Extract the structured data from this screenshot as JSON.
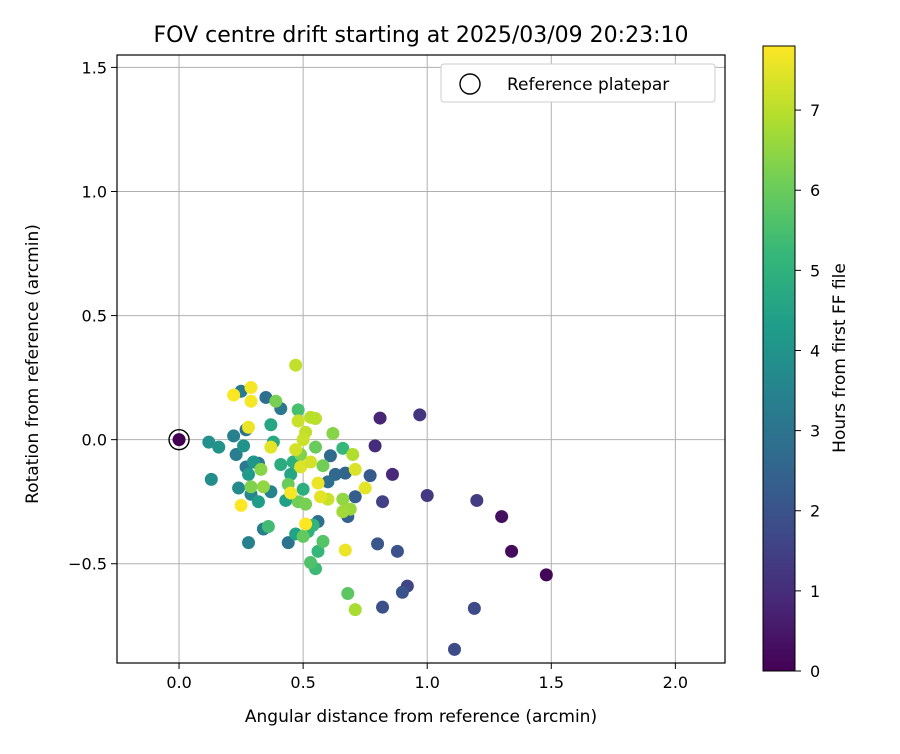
{
  "chart_data": {
    "type": "scatter",
    "title": "FOV centre drift starting at 2025/03/09 20:23:10",
    "xlabel": "Angular distance from reference (arcmin)",
    "ylabel": "Rotation from reference (arcmin)",
    "xlim": [
      -0.25,
      2.2
    ],
    "ylim": [
      -0.9,
      1.55
    ],
    "xticks": [
      "0.0",
      "0.5",
      "1.0",
      "1.5",
      "2.0"
    ],
    "xtick_values": [
      0,
      0.5,
      1.0,
      1.5,
      2.0
    ],
    "yticks": [
      "−0.5",
      "0.0",
      "0.5",
      "1.0",
      "1.5"
    ],
    "ytick_values": [
      -0.5,
      0,
      0.5,
      1.0,
      1.5
    ],
    "grid": true,
    "legend": {
      "label": "Reference platepar",
      "placement": "top-right"
    },
    "reference_point": {
      "x": 0,
      "y": 0,
      "hours": 0
    },
    "colorbar": {
      "label": "Hours from first FF file",
      "colormap": "viridis",
      "range": [
        0,
        7.8
      ],
      "ticks": [
        "0",
        "1",
        "2",
        "3",
        "4",
        "5",
        "6",
        "7"
      ],
      "tick_values": [
        0,
        1,
        2,
        3,
        4,
        5,
        6,
        7
      ]
    },
    "points": [
      {
        "x": 1.48,
        "y": -0.545,
        "hours": 0.1
      },
      {
        "x": 1.34,
        "y": -0.45,
        "hours": 0.2
      },
      {
        "x": 1.3,
        "y": -0.31,
        "hours": 0.3
      },
      {
        "x": 0.81,
        "y": 0.087,
        "hours": 0.8
      },
      {
        "x": 0.86,
        "y": -0.14,
        "hours": 0.9
      },
      {
        "x": 0.79,
        "y": -0.025,
        "hours": 1.0
      },
      {
        "x": 0.97,
        "y": 0.1,
        "hours": 1.2
      },
      {
        "x": 1.0,
        "y": -0.225,
        "hours": 1.3
      },
      {
        "x": 1.2,
        "y": -0.245,
        "hours": 1.4
      },
      {
        "x": 0.82,
        "y": -0.25,
        "hours": 1.5
      },
      {
        "x": 0.92,
        "y": -0.59,
        "hours": 1.6
      },
      {
        "x": 1.19,
        "y": -0.68,
        "hours": 1.7
      },
      {
        "x": 1.11,
        "y": -0.845,
        "hours": 1.8
      },
      {
        "x": 0.82,
        "y": -0.675,
        "hours": 1.9
      },
      {
        "x": 0.9,
        "y": -0.615,
        "hours": 2.0
      },
      {
        "x": 0.88,
        "y": -0.45,
        "hours": 2.0
      },
      {
        "x": 0.8,
        "y": -0.42,
        "hours": 2.1
      },
      {
        "x": 0.77,
        "y": -0.145,
        "hours": 2.2
      },
      {
        "x": 0.71,
        "y": -0.23,
        "hours": 2.3
      },
      {
        "x": 0.68,
        "y": -0.31,
        "hours": 2.4
      },
      {
        "x": 0.67,
        "y": -0.135,
        "hours": 2.5
      },
      {
        "x": 0.63,
        "y": -0.14,
        "hours": 2.6
      },
      {
        "x": 0.61,
        "y": -0.065,
        "hours": 2.7
      },
      {
        "x": 0.6,
        "y": -0.17,
        "hours": 2.8
      },
      {
        "x": 0.56,
        "y": -0.33,
        "hours": 2.9
      },
      {
        "x": 0.44,
        "y": -0.415,
        "hours": 3.0
      },
      {
        "x": 0.35,
        "y": 0.17,
        "hours": 2.8
      },
      {
        "x": 0.41,
        "y": 0.125,
        "hours": 3.1
      },
      {
        "x": 0.25,
        "y": 0.195,
        "hours": 3.2
      },
      {
        "x": 0.27,
        "y": 0.04,
        "hours": 3.0
      },
      {
        "x": 0.22,
        "y": 0.015,
        "hours": 3.4
      },
      {
        "x": 0.23,
        "y": -0.06,
        "hours": 3.3
      },
      {
        "x": 0.32,
        "y": -0.095,
        "hours": 3.1
      },
      {
        "x": 0.27,
        "y": -0.11,
        "hours": 3.2
      },
      {
        "x": 0.34,
        "y": -0.36,
        "hours": 3.3
      },
      {
        "x": 0.28,
        "y": -0.415,
        "hours": 3.4
      },
      {
        "x": 0.37,
        "y": -0.21,
        "hours": 3.5
      },
      {
        "x": 0.29,
        "y": -0.22,
        "hours": 3.6
      },
      {
        "x": 0.24,
        "y": -0.195,
        "hours": 3.7
      },
      {
        "x": 0.13,
        "y": -0.16,
        "hours": 3.8
      },
      {
        "x": 0.12,
        "y": -0.01,
        "hours": 3.9
      },
      {
        "x": 0.16,
        "y": -0.03,
        "hours": 4.0
      },
      {
        "x": 0.26,
        "y": -0.025,
        "hours": 4.0
      },
      {
        "x": 0.3,
        "y": -0.09,
        "hours": 4.1
      },
      {
        "x": 0.28,
        "y": -0.14,
        "hours": 4.2
      },
      {
        "x": 0.32,
        "y": -0.25,
        "hours": 4.3
      },
      {
        "x": 0.43,
        "y": -0.245,
        "hours": 4.4
      },
      {
        "x": 0.47,
        "y": -0.38,
        "hours": 4.5
      },
      {
        "x": 0.45,
        "y": -0.14,
        "hours": 4.6
      },
      {
        "x": 0.37,
        "y": 0.06,
        "hours": 4.6
      },
      {
        "x": 0.38,
        "y": -0.01,
        "hours": 4.7
      },
      {
        "x": 0.41,
        "y": -0.1,
        "hours": 4.8
      },
      {
        "x": 0.46,
        "y": -0.09,
        "hours": 4.9
      },
      {
        "x": 0.5,
        "y": -0.2,
        "hours": 4.9
      },
      {
        "x": 0.52,
        "y": -0.37,
        "hours": 5.0
      },
      {
        "x": 0.54,
        "y": -0.345,
        "hours": 5.1
      },
      {
        "x": 0.56,
        "y": -0.45,
        "hours": 5.2
      },
      {
        "x": 0.55,
        "y": -0.52,
        "hours": 5.3
      },
      {
        "x": 0.66,
        "y": -0.035,
        "hours": 5.2
      },
      {
        "x": 0.36,
        "y": -0.35,
        "hours": 5.4
      },
      {
        "x": 0.48,
        "y": 0.12,
        "hours": 5.5
      },
      {
        "x": 0.53,
        "y": -0.495,
        "hours": 5.6
      },
      {
        "x": 0.58,
        "y": -0.41,
        "hours": 5.7
      },
      {
        "x": 0.68,
        "y": -0.62,
        "hours": 5.8
      },
      {
        "x": 0.5,
        "y": -0.39,
        "hours": 5.9
      },
      {
        "x": 0.44,
        "y": -0.18,
        "hours": 6.0
      },
      {
        "x": 0.48,
        "y": -0.25,
        "hours": 6.1
      },
      {
        "x": 0.51,
        "y": -0.26,
        "hours": 6.2
      },
      {
        "x": 0.55,
        "y": -0.03,
        "hours": 6.0
      },
      {
        "x": 0.58,
        "y": -0.105,
        "hours": 6.1
      },
      {
        "x": 0.49,
        "y": -0.06,
        "hours": 6.3
      },
      {
        "x": 0.39,
        "y": 0.155,
        "hours": 6.2
      },
      {
        "x": 0.33,
        "y": -0.12,
        "hours": 6.4
      },
      {
        "x": 0.29,
        "y": -0.19,
        "hours": 6.3
      },
      {
        "x": 0.34,
        "y": -0.19,
        "hours": 6.5
      },
      {
        "x": 0.62,
        "y": 0.025,
        "hours": 6.4
      },
      {
        "x": 0.66,
        "y": -0.24,
        "hours": 6.5
      },
      {
        "x": 0.69,
        "y": -0.28,
        "hours": 6.6
      },
      {
        "x": 0.66,
        "y": -0.29,
        "hours": 6.7
      },
      {
        "x": 0.71,
        "y": -0.685,
        "hours": 6.8
      },
      {
        "x": 0.7,
        "y": -0.06,
        "hours": 6.9
      },
      {
        "x": 0.53,
        "y": 0.09,
        "hours": 7.0
      },
      {
        "x": 0.55,
        "y": 0.085,
        "hours": 7.0
      },
      {
        "x": 0.51,
        "y": 0.03,
        "hours": 7.1
      },
      {
        "x": 0.48,
        "y": 0.075,
        "hours": 7.2
      },
      {
        "x": 0.47,
        "y": -0.04,
        "hours": 7.3
      },
      {
        "x": 0.49,
        "y": -0.11,
        "hours": 7.4
      },
      {
        "x": 0.53,
        "y": -0.09,
        "hours": 7.3
      },
      {
        "x": 0.6,
        "y": -0.24,
        "hours": 7.2
      },
      {
        "x": 0.57,
        "y": -0.23,
        "hours": 7.5
      },
      {
        "x": 0.56,
        "y": -0.175,
        "hours": 7.6
      },
      {
        "x": 0.45,
        "y": -0.215,
        "hours": 7.7
      },
      {
        "x": 0.71,
        "y": -0.12,
        "hours": 7.4
      },
      {
        "x": 0.75,
        "y": -0.195,
        "hours": 7.5
      },
      {
        "x": 0.67,
        "y": -0.445,
        "hours": 7.6
      },
      {
        "x": 0.47,
        "y": 0.3,
        "hours": 7.1
      },
      {
        "x": 0.29,
        "y": 0.21,
        "hours": 7.7
      },
      {
        "x": 0.22,
        "y": 0.18,
        "hours": 7.8
      },
      {
        "x": 0.29,
        "y": 0.155,
        "hours": 7.7
      },
      {
        "x": 0.28,
        "y": 0.05,
        "hours": 7.6
      },
      {
        "x": 0.37,
        "y": -0.03,
        "hours": 7.5
      },
      {
        "x": 0.25,
        "y": -0.265,
        "hours": 7.8
      },
      {
        "x": 0.51,
        "y": -0.34,
        "hours": 7.8
      },
      {
        "x": 0.5,
        "y": 0.0,
        "hours": 7.2
      }
    ]
  }
}
